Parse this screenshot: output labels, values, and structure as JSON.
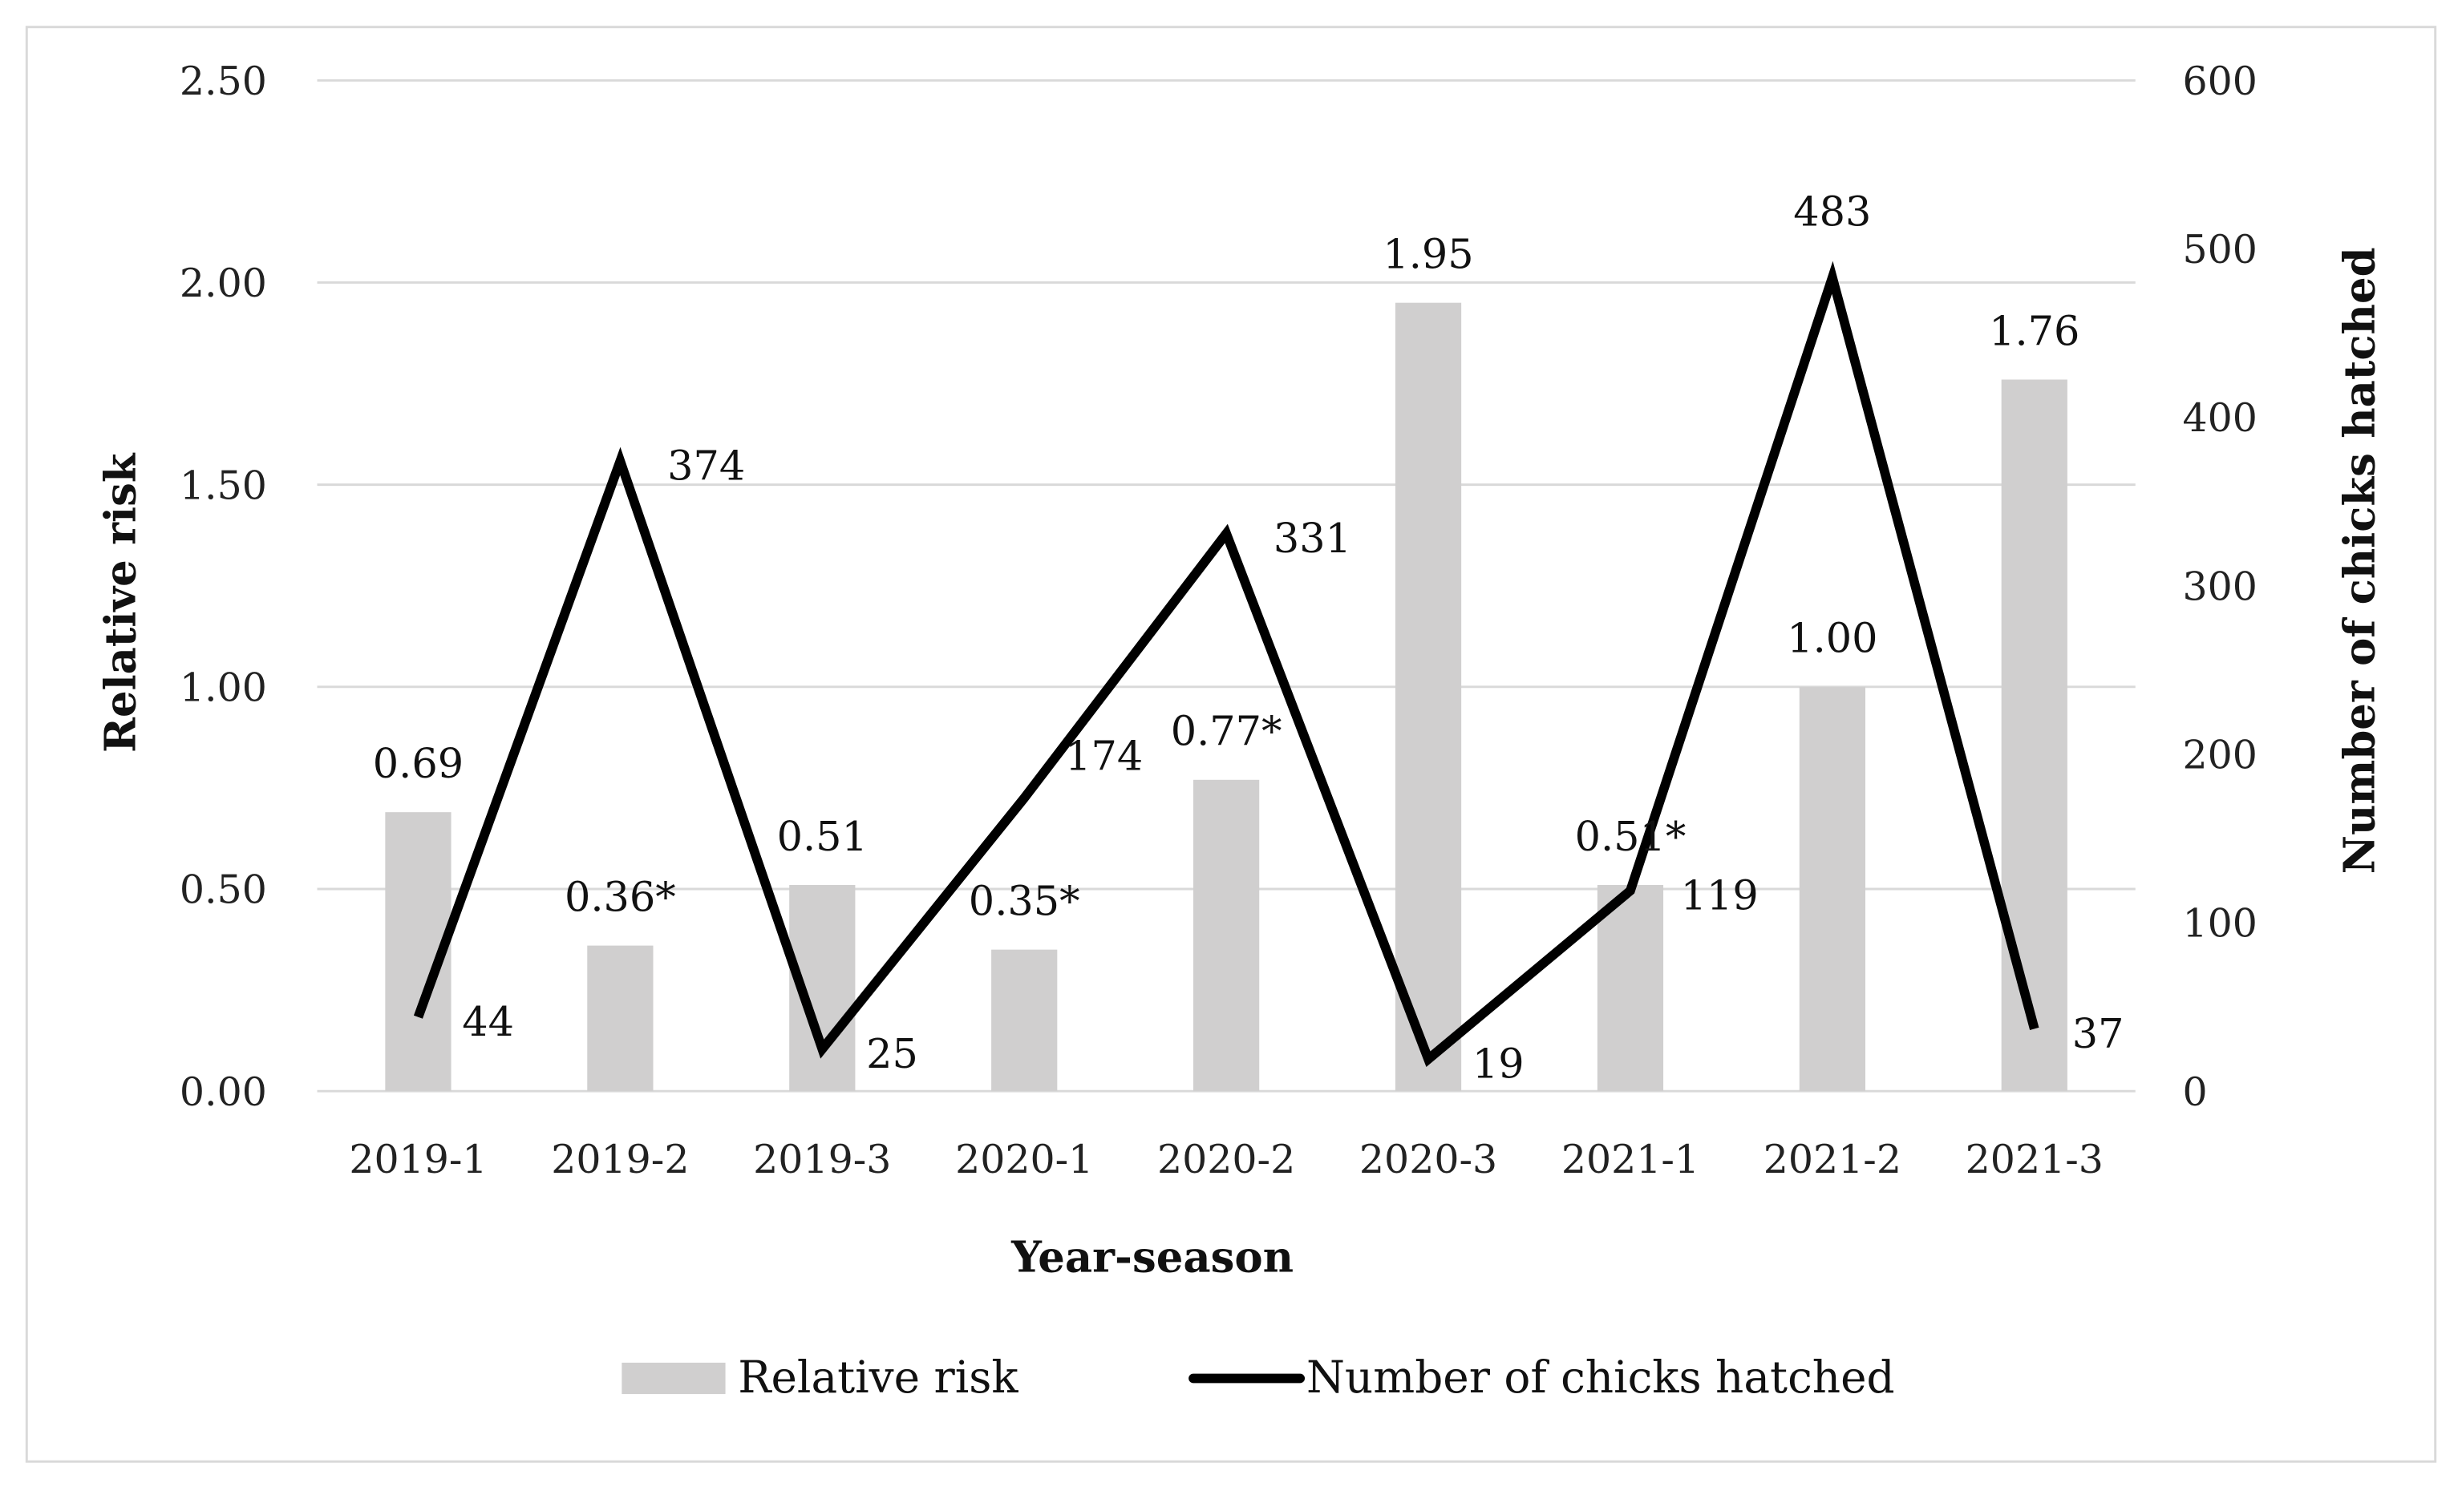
{
  "chart_data": {
    "type": "bar+line",
    "xlabel": "Year-season",
    "ylabel": "Relative risk",
    "y2label": "Number of chicks hatched",
    "categories": [
      "2019-1",
      "2019-2",
      "2019-3",
      "2020-1",
      "2020-2",
      "2020-3",
      "2021-1",
      "2021-2",
      "2021-3"
    ],
    "ylim": [
      0,
      2.5
    ],
    "y2lim": [
      0,
      600
    ],
    "yticks": [
      "0.00",
      "0.50",
      "1.00",
      "1.50",
      "2.00",
      "2.50"
    ],
    "y2ticks": [
      "0",
      "100",
      "200",
      "300",
      "400",
      "500",
      "600"
    ],
    "grid": true,
    "legend_position": "bottom",
    "series": [
      {
        "name": "Relative risk",
        "type": "bar",
        "axis": "left",
        "color": "#d0cfcf",
        "values": [
          0.69,
          0.36,
          0.51,
          0.35,
          0.77,
          1.95,
          0.51,
          1.0,
          1.76
        ],
        "labels": [
          "0.69",
          "0.36*",
          "0.51",
          "0.35*",
          "0.77*",
          "1.95",
          "0.51*",
          "1.00",
          "1.76"
        ]
      },
      {
        "name": "Number of chicks hatched",
        "type": "line",
        "axis": "right",
        "color": "#000000",
        "values": [
          44,
          374,
          25,
          174,
          331,
          19,
          119,
          483,
          37
        ],
        "labels": [
          "44",
          "374",
          "25",
          "174",
          "331",
          "19",
          "119",
          "483",
          "37"
        ]
      }
    ]
  }
}
